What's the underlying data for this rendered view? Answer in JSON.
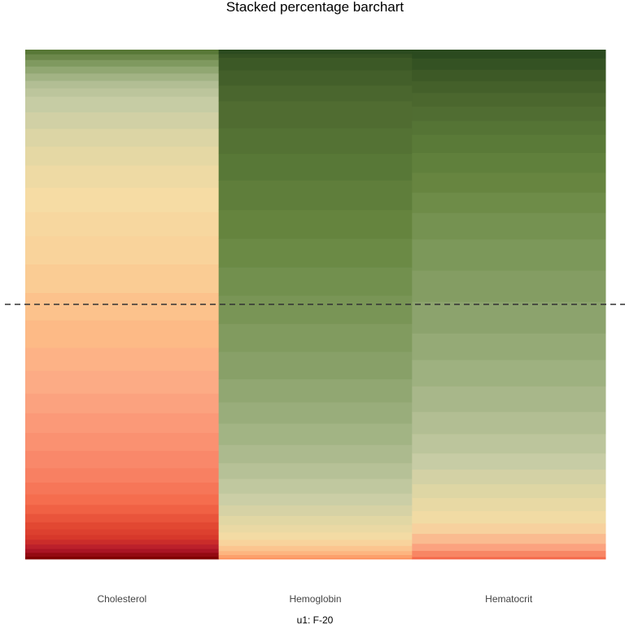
{
  "chart_data": {
    "type": "bar",
    "stacked": "percent",
    "title": "Stacked percentage barchart",
    "xlabel": "u1: F-20",
    "ylabel": "",
    "categories": [
      "Cholesterol",
      "Hemoglobin",
      "Hematocrit"
    ],
    "ylim": [
      0,
      100
    ],
    "reference_line": 50,
    "segments_percent": [
      [
        0.6,
        0.9,
        0.9,
        1.0,
        1.1,
        1.1,
        1.3,
        1.6,
        1.9,
        2.1,
        2.4,
        2.7,
        3.3,
        4.0,
        4.1,
        4.5,
        4.5,
        5.2,
        5.3,
        6.3,
        6.3,
        6.5,
        6.5,
        5.5,
        5.6,
        5.1,
        4.3,
        4.1,
        3.8,
        3.6,
        1.9,
        1.7,
        1.7,
        1.6,
        1.5,
        1.3,
        1.0
      ],
      [
        0.3,
        0.7,
        0.9,
        1.2,
        1.4,
        1.7,
        1.7,
        2.1,
        2.4,
        2.7,
        3.4,
        3.6,
        4.2,
        4.9,
        4.9,
        5.3,
        6.3,
        6.4,
        6.5,
        6.5,
        6.6,
        6.6,
        6.8,
        6.1,
        5.9,
        6.2,
        3.6,
        3.5,
        2.9,
        0.9,
        0.9
      ],
      [
        0.5,
        1.3,
        1.5,
        2.1,
        2.2,
        2.6,
        2.8,
        2.9,
        3.1,
        3.4,
        4.1,
        4.7,
        5.4,
        5.6,
        5.6,
        6.7,
        6.6,
        6.6,
        5.6,
        4.3,
        4.2,
        4.2,
        3.8,
        3.0,
        3.0,
        2.9,
        2.5,
        2.4,
        2.4,
        1.8
      ]
    ],
    "palette": [
      "#7f0000",
      "#b2182b",
      "#d6362a",
      "#e34a33",
      "#f4694a",
      "#f88062",
      "#fa9474",
      "#fca985",
      "#fdbb86",
      "#f9d199",
      "#f6dca4",
      "#e2d7a4",
      "#c8cda6",
      "#b0bd92",
      "#9aae7c",
      "#879f67",
      "#769352",
      "#66853f",
      "#587837",
      "#4e6a30",
      "#3f5b27",
      "#2b4a1f"
    ],
    "palettes": [
      [
        "#7f0000",
        "#b2182b",
        "#d6362a",
        "#e34a33",
        "#f4694a",
        "#f88062",
        "#fa9474",
        "#fca985",
        "#fdbb86",
        "#f9d199",
        "#f6dca4",
        "#e2d7a4",
        "#c8cda6",
        "#b0bd92",
        "#879f67",
        "#587837"
      ],
      [
        "#fc8d59",
        "#fdbb86",
        "#f6dca4",
        "#e2d7a4",
        "#c8cda6",
        "#b0bd92",
        "#9aae7c",
        "#879f67",
        "#769352",
        "#66853f",
        "#587837",
        "#4e6a30",
        "#3f5b27",
        "#2b4a1f"
      ],
      [
        "#f4694a",
        "#fca985",
        "#f6dca4",
        "#e2d7a4",
        "#c8cda6",
        "#b0bd92",
        "#9aae7c",
        "#879f67",
        "#769352",
        "#66853f",
        "#587837",
        "#4e6a30",
        "#3f5b27",
        "#2b4a1f"
      ]
    ],
    "reference_line_color": "#333333"
  }
}
